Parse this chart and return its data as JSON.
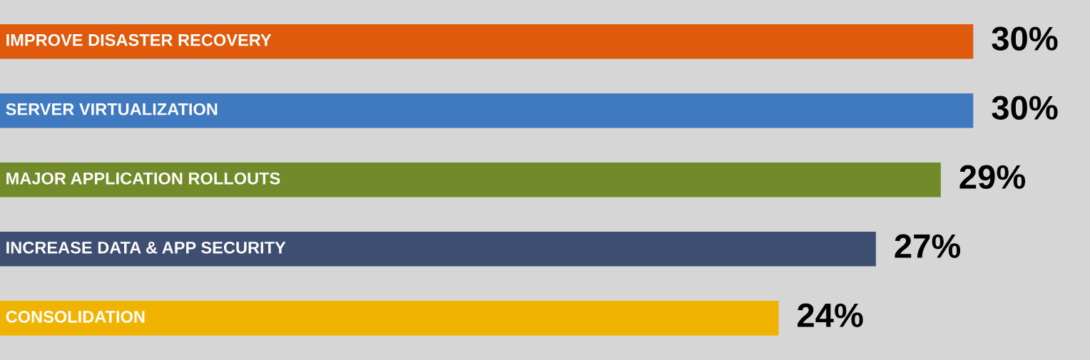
{
  "chart_data": {
    "type": "bar",
    "orientation": "horizontal",
    "categories": [
      "IMPROVE DISASTER RECOVERY",
      "SERVER VIRTUALIZATION",
      "MAJOR APPLICATION ROLLOUTS",
      "INCREASE DATA & APP SECURITY",
      "CONSOLIDATION"
    ],
    "values": [
      30,
      30,
      29,
      27,
      24
    ],
    "value_labels": [
      "30%",
      "30%",
      "29%",
      "27%",
      "24%"
    ],
    "colors": [
      "#e05a0c",
      "#3f79c0",
      "#738a2a",
      "#3e4e70",
      "#f0b400"
    ]
  }
}
